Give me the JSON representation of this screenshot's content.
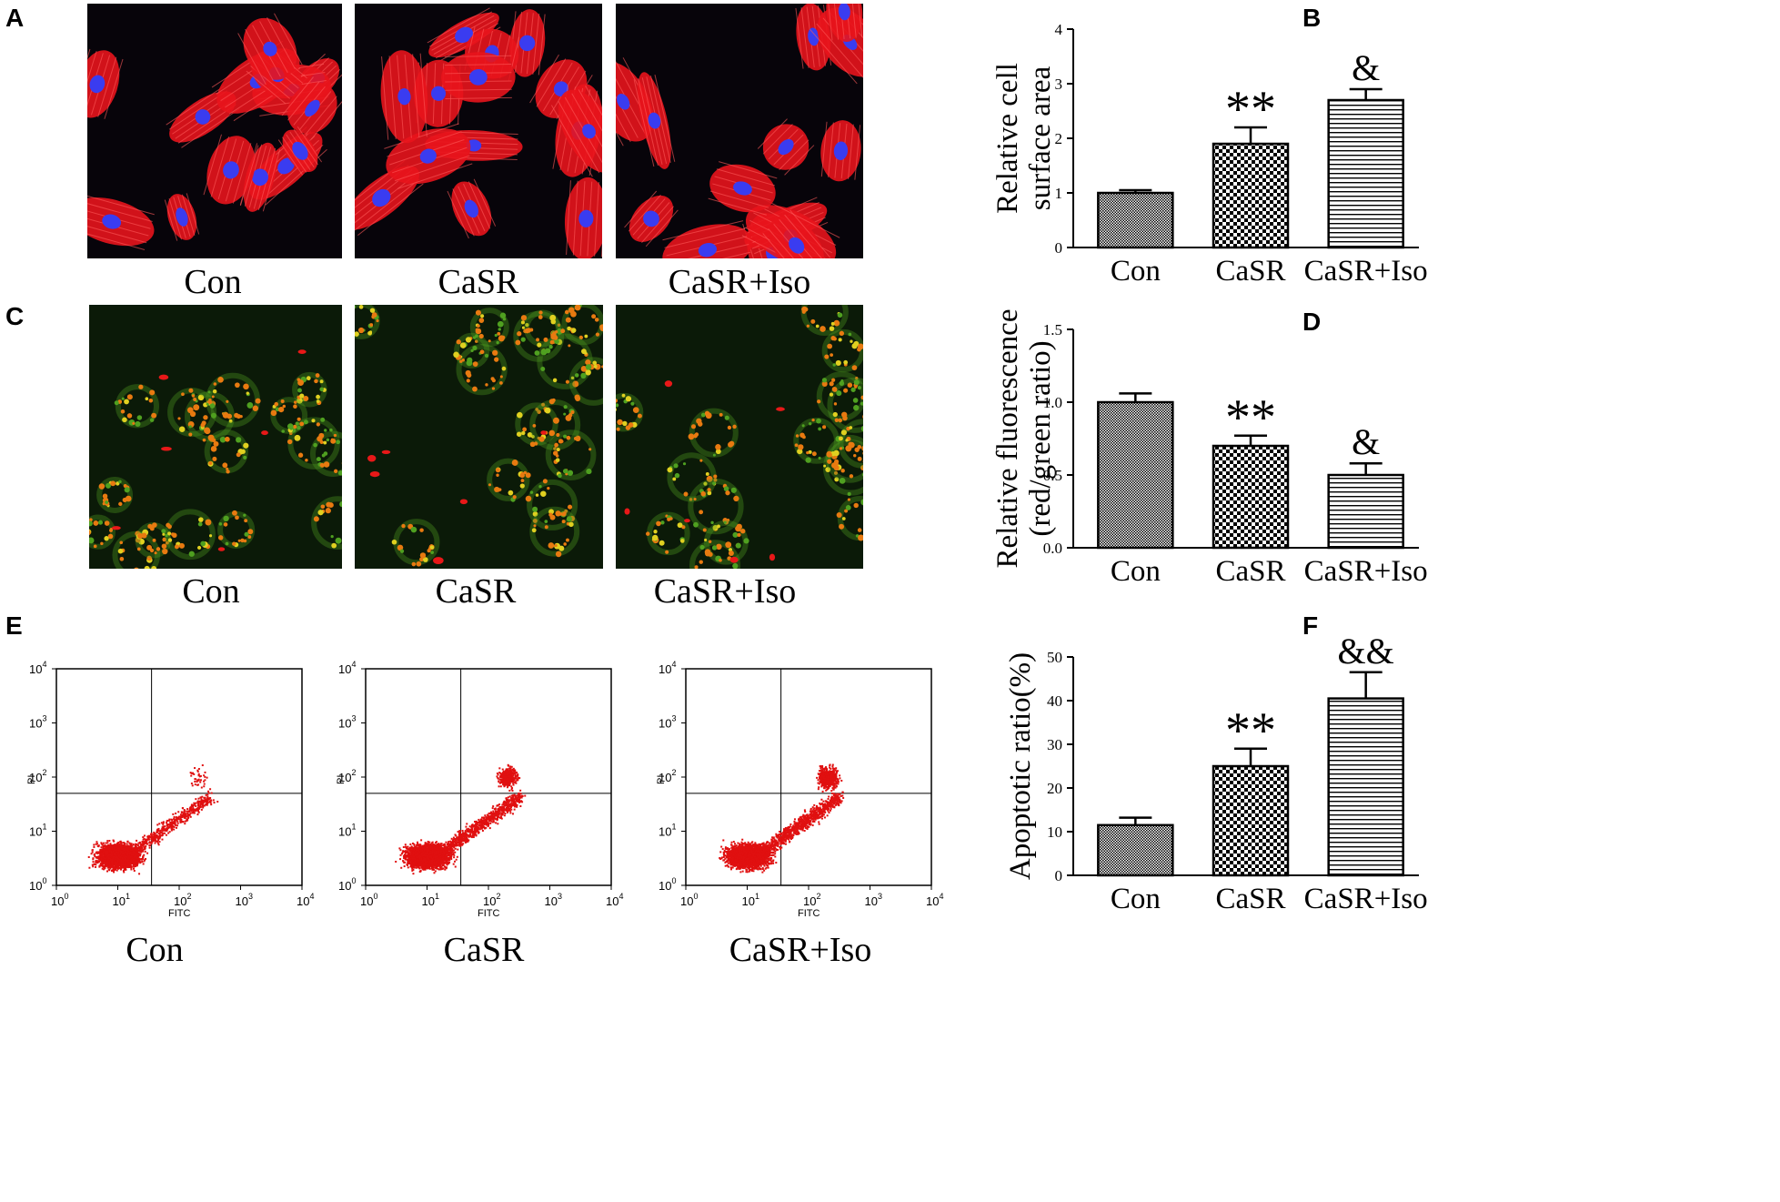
{
  "panels": {
    "A": "A",
    "B": "B",
    "C": "C",
    "D": "D",
    "E": "E",
    "F": "F"
  },
  "captions": {
    "a": [
      "Con",
      "CaSR",
      "CaSR+Iso"
    ],
    "c": [
      "Con",
      "CaSR",
      "CaSR+Iso"
    ],
    "e": [
      "Con",
      "CaSR",
      "CaSR+Iso"
    ]
  },
  "flow": {
    "xlabel": "FITC",
    "ylabel": "PI",
    "tick_base": "10",
    "tick_exps": [
      "0",
      "1",
      "2",
      "3",
      "4"
    ]
  },
  "colors": {
    "actin_red": "#e8141c",
    "nucleus_blue": "#3a3cf0",
    "mito_orange": "#e87a10",
    "mito_green": "#4fa020",
    "flow_dots": "#e01010"
  },
  "chart_data": [
    {
      "type": "bar",
      "panel": "B",
      "categories": [
        "Con",
        "CaSR",
        "CaSR+Iso"
      ],
      "values": [
        1.0,
        1.9,
        2.7
      ],
      "errors": [
        0.05,
        0.3,
        0.2
      ],
      "ylabel": "Relative cell surface area",
      "ylabel_lines": [
        "Relative cell",
        "surface area"
      ],
      "ylim": [
        0,
        4
      ],
      "yticks": [
        "0",
        "1",
        "2",
        "3",
        "4"
      ],
      "annotations": [
        "",
        "**",
        "&"
      ],
      "patterns": [
        "fine-dots",
        "checker",
        "horizontal-lines"
      ]
    },
    {
      "type": "bar",
      "panel": "D",
      "categories": [
        "Con",
        "CaSR",
        "CaSR+Iso"
      ],
      "values": [
        1.0,
        0.7,
        0.5
      ],
      "errors": [
        0.06,
        0.07,
        0.08
      ],
      "ylabel": "Relative fluorescence (red/green ratio)",
      "ylabel_lines": [
        "Relative fluorescence",
        "(red/green ratio)"
      ],
      "ylim": [
        0,
        1.5
      ],
      "yticks": [
        "0.0",
        "0.5",
        "1.0",
        "1.5"
      ],
      "annotations": [
        "",
        "**",
        "&"
      ],
      "patterns": [
        "fine-dots",
        "checker",
        "horizontal-lines"
      ]
    },
    {
      "type": "bar",
      "panel": "F",
      "categories": [
        "Con",
        "CaSR",
        "CaSR+Iso"
      ],
      "values": [
        11.5,
        25,
        40.5
      ],
      "errors": [
        1.7,
        4.0,
        6.0
      ],
      "ylabel": "Apoptotic ratio(%)",
      "ylabel_lines": [
        "Apoptotic ratio(%)"
      ],
      "ylim": [
        0,
        50
      ],
      "yticks": [
        "0",
        "10",
        "20",
        "30",
        "40",
        "50"
      ],
      "annotations": [
        "",
        "**",
        "&&"
      ],
      "patterns": [
        "fine-dots",
        "checker",
        "horizontal-lines"
      ]
    }
  ]
}
